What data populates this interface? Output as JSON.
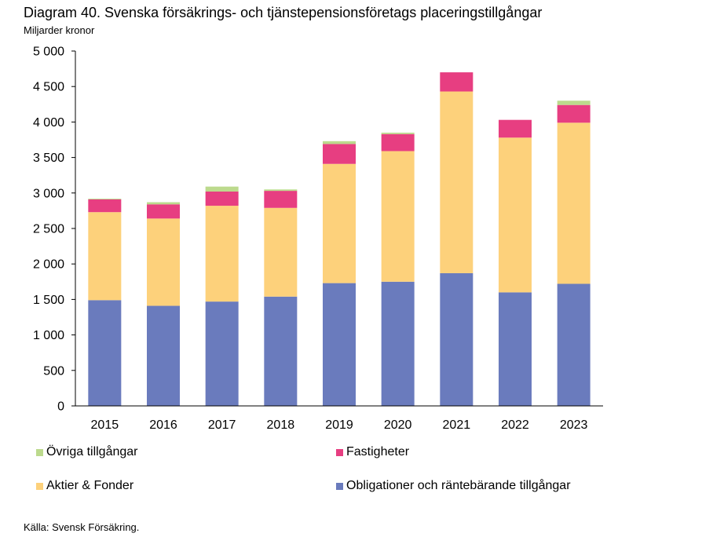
{
  "header": {
    "title": "Diagram 40. Svenska försäkrings- och tjänstepensionsföretags placeringstillgångar",
    "unit": "Miljarder kronor"
  },
  "source": "Källa: Svensk Försäkring.",
  "chart_data": {
    "type": "bar",
    "stacked": true,
    "title": "Diagram 40. Svenska försäkrings- och tjänstepensionsföretags placeringstillgångar",
    "ylabel": "Miljarder kronor",
    "xlabel": "",
    "categories": [
      "2015",
      "2016",
      "2017",
      "2018",
      "2019",
      "2020",
      "2021",
      "2022",
      "2023"
    ],
    "ylim": [
      0,
      5000
    ],
    "yticks": [
      0,
      500,
      1000,
      1500,
      2000,
      2500,
      3000,
      3500,
      4000,
      4500,
      5000
    ],
    "ytick_labels": [
      "0",
      "500",
      "1 000",
      "1 500",
      "2 000",
      "2 500",
      "3 000",
      "3 500",
      "4 000",
      "4 500",
      "5 000"
    ],
    "grid": false,
    "legend_position": "bottom",
    "series": [
      {
        "name": "Obligationer och räntebärande tillgångar",
        "color": "#6a7bbd",
        "values": [
          1490,
          1410,
          1470,
          1540,
          1730,
          1750,
          1870,
          1600,
          1720
        ]
      },
      {
        "name": "Aktier & Fonder",
        "color": "#fdd17b",
        "values": [
          1240,
          1230,
          1350,
          1250,
          1680,
          1840,
          2560,
          2180,
          2270
        ]
      },
      {
        "name": "Fastigheter",
        "color": "#e73e81",
        "values": [
          180,
          200,
          200,
          240,
          280,
          240,
          270,
          250,
          250
        ]
      },
      {
        "name": "Övriga tillgångar",
        "color": "#bcda8d",
        "values": [
          10,
          30,
          70,
          20,
          40,
          20,
          0,
          0,
          60
        ]
      }
    ],
    "legend_order": [
      3,
      2,
      1,
      0
    ]
  }
}
